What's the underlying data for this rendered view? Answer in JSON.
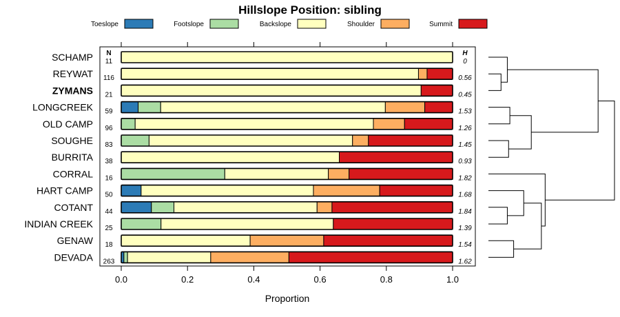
{
  "chart_data": {
    "type": "bar",
    "subtype": "stacked-horizontal-proportion",
    "title": "Hillslope Position: sibling",
    "xlabel": "Proportion",
    "ylabel": "",
    "xlim": [
      0,
      1
    ],
    "xticks": [
      "0.0",
      "0.2",
      "0.4",
      "0.6",
      "0.8",
      "1.0"
    ],
    "n_header": "N",
    "h_header": "H",
    "legend": [
      {
        "name": "Toeslope",
        "color": "#2c7bb6"
      },
      {
        "name": "Footslope",
        "color": "#abdda4"
      },
      {
        "name": "Backslope",
        "color": "#ffffbf"
      },
      {
        "name": "Shoulder",
        "color": "#fdae61"
      },
      {
        "name": "Summit",
        "color": "#d7191c"
      }
    ],
    "series_names": [
      "Toeslope",
      "Footslope",
      "Backslope",
      "Shoulder",
      "Summit"
    ],
    "categories": [
      {
        "label": "SCHAMP",
        "n": "11",
        "h": "0",
        "bold": false,
        "values": [
          0,
          0,
          1.0,
          0,
          0
        ]
      },
      {
        "label": "REYWAT",
        "n": "116",
        "h": "0.56",
        "bold": false,
        "values": [
          0,
          0,
          0.897,
          0.026,
          0.077
        ]
      },
      {
        "label": "ZYMANS",
        "n": "21",
        "h": "0.45",
        "bold": true,
        "values": [
          0,
          0,
          0.905,
          0,
          0.095
        ]
      },
      {
        "label": "LONGCREEK",
        "n": "59",
        "h": "1.53",
        "bold": false,
        "values": [
          0.051,
          0.068,
          0.678,
          0.119,
          0.084
        ]
      },
      {
        "label": "OLD CAMP",
        "n": "96",
        "h": "1.26",
        "bold": false,
        "values": [
          0,
          0.042,
          0.719,
          0.094,
          0.145
        ]
      },
      {
        "label": "SOUGHE",
        "n": "83",
        "h": "1.45",
        "bold": false,
        "values": [
          0,
          0.084,
          0.614,
          0.048,
          0.254
        ]
      },
      {
        "label": "BURRITA",
        "n": "38",
        "h": "0.93",
        "bold": false,
        "values": [
          0,
          0,
          0.658,
          0,
          0.342
        ]
      },
      {
        "label": "CORRAL",
        "n": "16",
        "h": "1.82",
        "bold": false,
        "values": [
          0,
          0.3125,
          0.3125,
          0.0625,
          0.3125
        ]
      },
      {
        "label": "HART CAMP",
        "n": "50",
        "h": "1.68",
        "bold": false,
        "values": [
          0.06,
          0,
          0.52,
          0.2,
          0.22
        ]
      },
      {
        "label": "COTANT",
        "n": "44",
        "h": "1.84",
        "bold": false,
        "values": [
          0.091,
          0.068,
          0.432,
          0.045,
          0.364
        ]
      },
      {
        "label": "INDIAN CREEK",
        "n": "25",
        "h": "1.39",
        "bold": false,
        "values": [
          0,
          0.12,
          0.52,
          0,
          0.36
        ]
      },
      {
        "label": "GENAW",
        "n": "18",
        "h": "1.54",
        "bold": false,
        "values": [
          0,
          0,
          0.389,
          0.222,
          0.389
        ]
      },
      {
        "label": "DEVADA",
        "n": "263",
        "h": "1.62",
        "bold": false,
        "values": [
          0.008,
          0.011,
          0.251,
          0.236,
          0.494
        ]
      }
    ],
    "dendrogram": {
      "description": "hierarchical clustering of series by composition; leaf order matches categories",
      "merges": [
        {
          "a": "REYWAT",
          "b": "ZYMANS",
          "height": 0.1
        },
        {
          "a": "SCHAMP",
          "b": [
            "REYWAT",
            "ZYMANS"
          ],
          "height": 0.15
        },
        {
          "a": "LONGCREEK",
          "b": "OLD CAMP",
          "height": 0.17
        },
        {
          "a": "SOUGHE",
          "b": "BURRITA",
          "height": 0.16
        },
        {
          "a": [
            "LONGCREEK",
            "OLD CAMP"
          ],
          "b": [
            "SOUGHE",
            "BURRITA"
          ],
          "height": 0.34
        },
        {
          "a": [
            "SCHAMP",
            "REYWAT",
            "ZYMANS"
          ],
          "b": [
            "LONGCREEK",
            "OLD CAMP",
            "SOUGHE",
            "BURRITA"
          ],
          "height": 0.87
        },
        {
          "a": "COTANT",
          "b": "INDIAN CREEK",
          "height": 0.15
        },
        {
          "a": "HART CAMP",
          "b": [
            "COTANT",
            "INDIAN CREEK"
          ],
          "height": 0.28
        },
        {
          "a": "GENAW",
          "b": "DEVADA",
          "height": 0.2
        },
        {
          "a": [
            "HART CAMP",
            "COTANT",
            "INDIAN CREEK"
          ],
          "b": [
            "GENAW",
            "DEVADA"
          ],
          "height": 0.42
        },
        {
          "a": "CORRAL",
          "b": [
            "HART CAMP",
            "COTANT",
            "INDIAN CREEK",
            "GENAW",
            "DEVADA"
          ],
          "height": 0.45
        },
        {
          "a": [
            "SCHAMP",
            "REYWAT",
            "ZYMANS",
            "LONGCREEK",
            "OLD CAMP",
            "SOUGHE",
            "BURRITA"
          ],
          "b": [
            "CORRAL",
            "HART CAMP",
            "COTANT",
            "INDIAN CREEK",
            "GENAW",
            "DEVADA"
          ],
          "height": 1.0
        }
      ]
    }
  }
}
